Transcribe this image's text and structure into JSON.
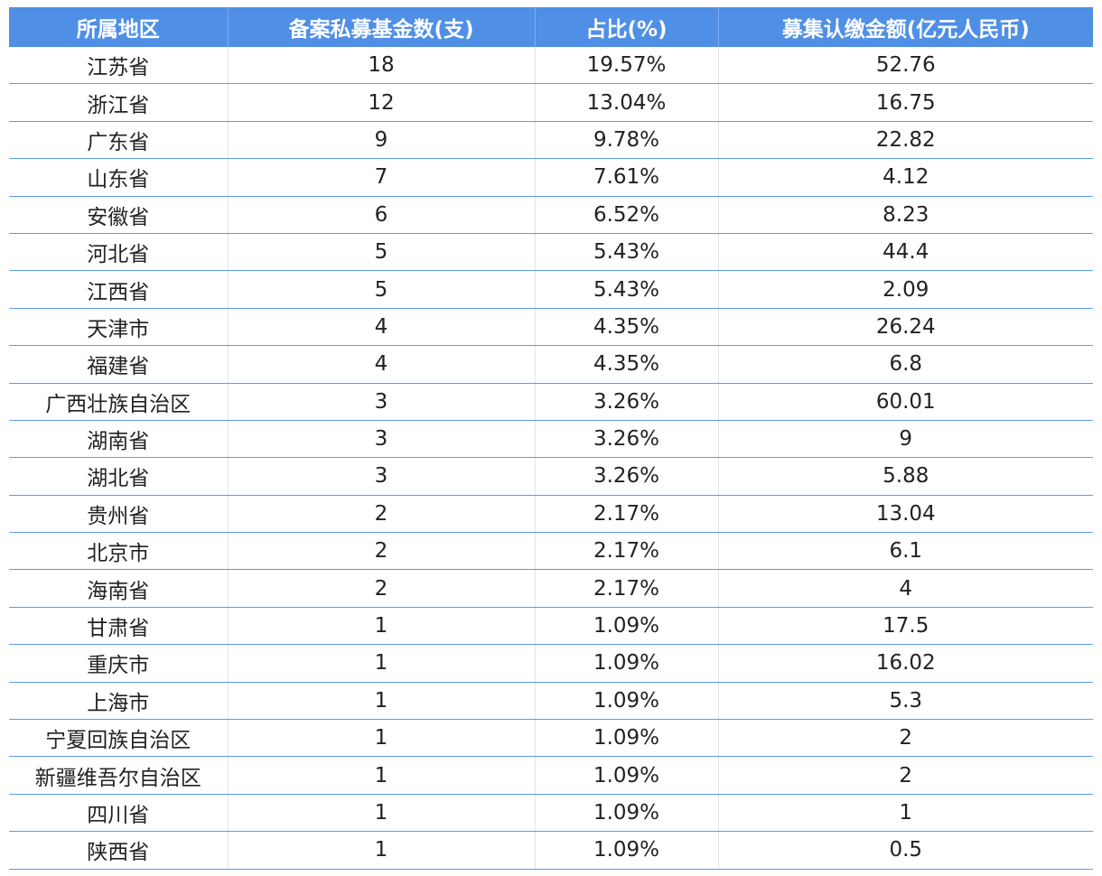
{
  "table": {
    "header": [
      "所属地区",
      "备案私募基金数(支)",
      "占比(%)",
      "募集认缴金额(亿元人民币)"
    ],
    "rows": [
      [
        "江苏省",
        "18",
        "19.57%",
        "52.76"
      ],
      [
        "浙江省",
        "12",
        "13.04%",
        "16.75"
      ],
      [
        "广东省",
        "9",
        "9.78%",
        "22.82"
      ],
      [
        "山东省",
        "7",
        "7.61%",
        "4.12"
      ],
      [
        "安徽省",
        "6",
        "6.52%",
        "8.23"
      ],
      [
        "河北省",
        "5",
        "5.43%",
        "44.4"
      ],
      [
        "江西省",
        "5",
        "5.43%",
        "2.09"
      ],
      [
        "天津市",
        "4",
        "4.35%",
        "26.24"
      ],
      [
        "福建省",
        "4",
        "4.35%",
        "6.8"
      ],
      [
        "广西壮族自治区",
        "3",
        "3.26%",
        "60.01"
      ],
      [
        "湖南省",
        "3",
        "3.26%",
        "9"
      ],
      [
        "湖北省",
        "3",
        "3.26%",
        "5.88"
      ],
      [
        "贵州省",
        "2",
        "2.17%",
        "13.04"
      ],
      [
        "北京市",
        "2",
        "2.17%",
        "6.1"
      ],
      [
        "海南省",
        "2",
        "2.17%",
        "4"
      ],
      [
        "甘肃省",
        "1",
        "1.09%",
        "17.5"
      ],
      [
        "重庆市",
        "1",
        "1.09%",
        "16.02"
      ],
      [
        "上海市",
        "1",
        "1.09%",
        "5.3"
      ],
      [
        "宁夏回族自治区",
        "1",
        "1.09%",
        "2"
      ],
      [
        "新疆维吾尔自治区",
        "1",
        "1.09%",
        "2"
      ],
      [
        "四川省",
        "1",
        "1.09%",
        "1"
      ],
      [
        "陕西省",
        "1",
        "1.09%",
        "0.5"
      ]
    ]
  }
}
